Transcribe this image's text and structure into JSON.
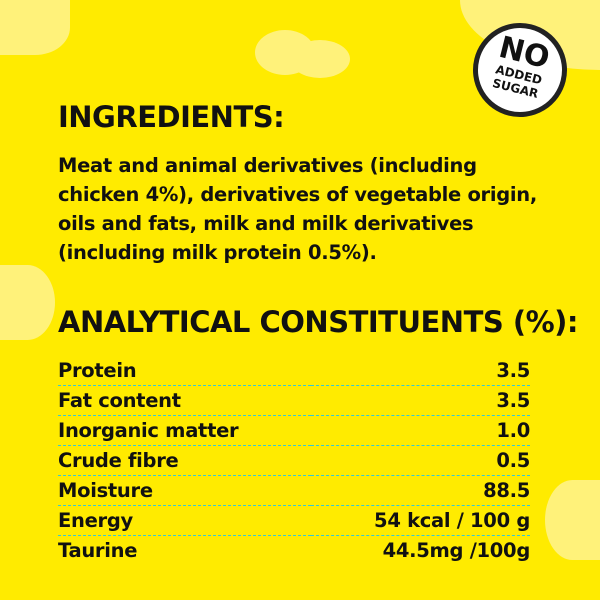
{
  "badge": {
    "line1": "NO",
    "line2": "ADDED",
    "line3": "SUGAR"
  },
  "ingredients": {
    "title": "INGREDIENTS:",
    "text": "Meat and animal derivatives (including chicken 4%), derivatives of vegetable origin, oils and fats, milk and milk derivatives (including milk protein 0.5%)."
  },
  "analytical": {
    "title": "ANALYTICAL CONSTITUENTS",
    "title_suffix": "(%):",
    "rows": [
      {
        "label": "Protein",
        "value": "3.5"
      },
      {
        "label": "Fat content",
        "value": "3.5"
      },
      {
        "label": "Inorganic matter",
        "value": "1.0"
      },
      {
        "label": "Crude fibre",
        "value": "0.5"
      },
      {
        "label": "Moisture",
        "value": "88.5"
      },
      {
        "label": "Energy",
        "value": "54 kcal / 100 g"
      },
      {
        "label": "Taurine",
        "value": "44.5mg /100g"
      }
    ]
  },
  "colors": {
    "background": "#FFEB00",
    "cloud": "#FFF27A",
    "divider": "#33C8D8"
  }
}
